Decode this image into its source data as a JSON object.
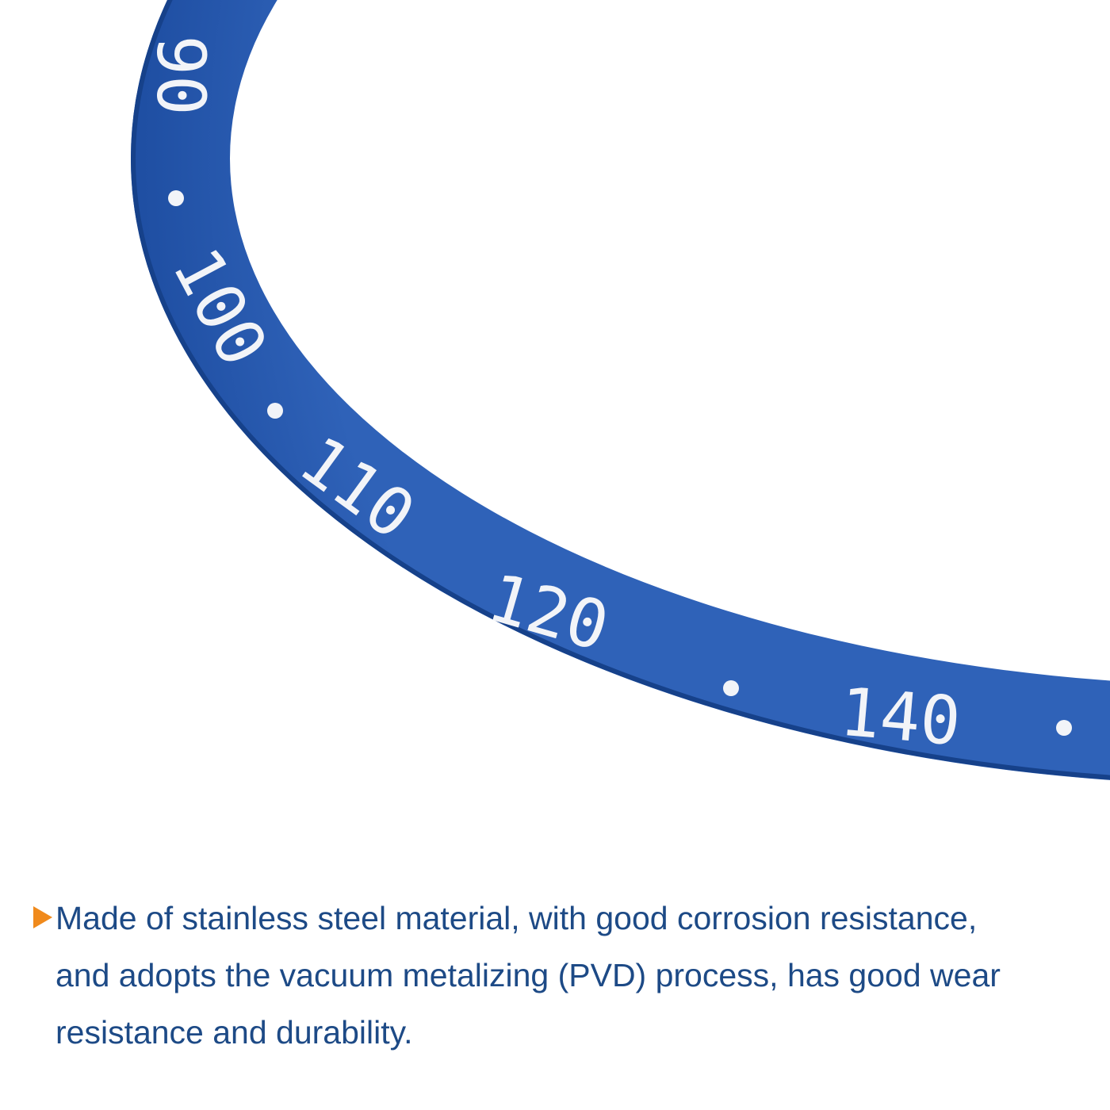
{
  "bezel": {
    "labels": [
      "90",
      "100",
      "110",
      "120",
      "140"
    ]
  },
  "description": {
    "lines": [
      "Made of stainless steel material, with good corrosion resistance,",
      "and adopts the vacuum metalizing (PVD) process, has good wear",
      "resistance and durability."
    ]
  }
}
